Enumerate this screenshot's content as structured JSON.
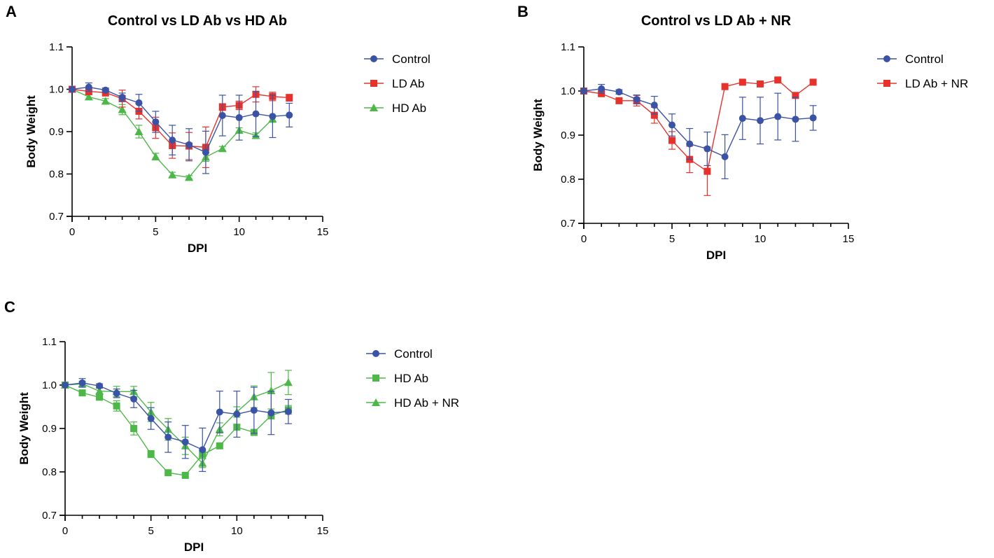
{
  "colors": {
    "Control": "#3a53a4",
    "LD Ab": "#e7322c",
    "HD Ab": "#4db848",
    "LD Ab + NR": "#e7322c",
    "HD Ab + NR": "#4db848"
  },
  "chart_data": [
    {
      "panel": "A",
      "type": "line",
      "title": "Control vs LD Ab vs HD Ab",
      "xlabel": "DPI",
      "ylabel": "Body Weight",
      "xlim": [
        0,
        15
      ],
      "ylim": [
        0.7,
        1.1
      ],
      "xticks": [
        "0",
        "5",
        "10",
        "15"
      ],
      "yticks": [
        "0.7",
        "0.8",
        "0.9",
        "1.0",
        "1.1"
      ],
      "legend_position": "right",
      "x": [
        0,
        1,
        2,
        3,
        4,
        5,
        6,
        7,
        8,
        9,
        10,
        11,
        12,
        13
      ],
      "series": [
        {
          "name": "Control",
          "marker": "circle",
          "values": [
            1.0,
            1.005,
            0.998,
            0.981,
            0.968,
            0.923,
            0.88,
            0.869,
            0.851,
            0.938,
            0.933,
            0.942,
            0.936,
            0.939
          ],
          "errors": [
            0.0,
            0.01,
            0.005,
            0.01,
            0.02,
            0.025,
            0.035,
            0.038,
            0.05,
            0.048,
            0.053,
            0.053,
            0.05,
            0.028
          ]
        },
        {
          "name": "LD Ab",
          "marker": "square",
          "values": [
            1.0,
            0.995,
            0.992,
            0.978,
            0.948,
            0.909,
            0.867,
            0.866,
            0.863,
            0.958,
            0.962,
            0.988,
            0.983,
            0.98
          ],
          "errors": [
            0.0,
            0.008,
            0.008,
            0.02,
            0.018,
            0.025,
            0.03,
            0.032,
            0.048,
            0.008,
            0.01,
            0.018,
            0.01,
            0.008
          ]
        },
        {
          "name": "HD Ab",
          "marker": "triangle",
          "values": [
            1.0,
            0.982,
            0.972,
            0.952,
            0.9,
            0.841,
            0.798,
            0.792,
            0.84,
            0.86,
            0.903,
            0.891,
            0.93,
            null
          ],
          "errors": [
            0.0,
            0.006,
            0.006,
            0.012,
            0.015,
            0.008,
            0.006,
            0.004,
            0.01,
            0.005,
            0.006,
            0.006,
            0.008,
            0.0
          ]
        }
      ]
    },
    {
      "panel": "B",
      "type": "line",
      "title": "Control vs LD Ab + NR",
      "xlabel": "DPI",
      "ylabel": "Body Weight",
      "xlim": [
        0,
        15
      ],
      "ylim": [
        0.7,
        1.1
      ],
      "xticks": [
        "0",
        "5",
        "10",
        "15"
      ],
      "yticks": [
        "0.7",
        "0.8",
        "0.9",
        "1.0",
        "1.1"
      ],
      "legend_position": "right",
      "x": [
        0,
        1,
        2,
        3,
        4,
        5,
        6,
        7,
        8,
        9,
        10,
        11,
        12,
        13
      ],
      "series": [
        {
          "name": "Control",
          "marker": "circle",
          "values": [
            1.0,
            1.005,
            0.998,
            0.981,
            0.968,
            0.923,
            0.88,
            0.869,
            0.851,
            0.938,
            0.933,
            0.942,
            0.936,
            0.939
          ],
          "errors": [
            0.0,
            0.01,
            0.005,
            0.01,
            0.02,
            0.025,
            0.035,
            0.038,
            0.05,
            0.048,
            0.053,
            0.053,
            0.05,
            0.028
          ]
        },
        {
          "name": "LD Ab + NR",
          "marker": "square",
          "values": [
            1.0,
            0.994,
            0.978,
            0.978,
            0.945,
            0.888,
            0.845,
            0.818,
            1.01,
            1.02,
            1.016,
            1.025,
            0.99,
            1.02
          ],
          "errors": [
            0.0,
            0.005,
            0.005,
            0.012,
            0.018,
            0.02,
            0.03,
            0.055,
            0.004,
            0.004,
            0.004,
            0.004,
            0.006,
            0.004
          ]
        }
      ]
    },
    {
      "panel": "C",
      "type": "line",
      "title": "",
      "xlabel": "DPI",
      "ylabel": "Body Weight",
      "xlim": [
        0,
        15
      ],
      "ylim": [
        0.7,
        1.1
      ],
      "xticks": [
        "0",
        "5",
        "10",
        "15"
      ],
      "yticks": [
        "0.7",
        "0.8",
        "0.9",
        "1.0",
        "1.1"
      ],
      "legend_position": "right",
      "x": [
        0,
        1,
        2,
        3,
        4,
        5,
        6,
        7,
        8,
        9,
        10,
        11,
        12,
        13
      ],
      "series": [
        {
          "name": "Control",
          "marker": "circle",
          "values": [
            1.0,
            1.005,
            0.998,
            0.981,
            0.968,
            0.923,
            0.88,
            0.869,
            0.851,
            0.938,
            0.933,
            0.942,
            0.936,
            0.939
          ],
          "errors": [
            0.0,
            0.01,
            0.005,
            0.01,
            0.02,
            0.025,
            0.035,
            0.038,
            0.05,
            0.048,
            0.053,
            0.053,
            0.05,
            0.028
          ]
        },
        {
          "name": "HD Ab",
          "marker": "square",
          "values": [
            1.0,
            0.982,
            0.972,
            0.952,
            0.9,
            0.841,
            0.798,
            0.792,
            0.84,
            0.86,
            0.903,
            0.891,
            0.93,
            0.943
          ],
          "errors": [
            0.0,
            0.006,
            0.006,
            0.012,
            0.015,
            0.008,
            0.006,
            0.004,
            0.01,
            0.005,
            0.006,
            0.006,
            0.008,
            0.01
          ]
        },
        {
          "name": "HD Ab + NR",
          "marker": "triangle",
          "values": [
            1.0,
            1.003,
            0.986,
            0.985,
            0.985,
            0.938,
            0.898,
            0.86,
            0.82,
            0.898,
            0.938,
            0.973,
            0.987,
            1.006
          ],
          "errors": [
            0.0,
            0.006,
            0.008,
            0.012,
            0.012,
            0.022,
            0.025,
            0.02,
            0.01,
            0.015,
            0.012,
            0.025,
            0.042,
            0.028
          ]
        }
      ]
    }
  ]
}
